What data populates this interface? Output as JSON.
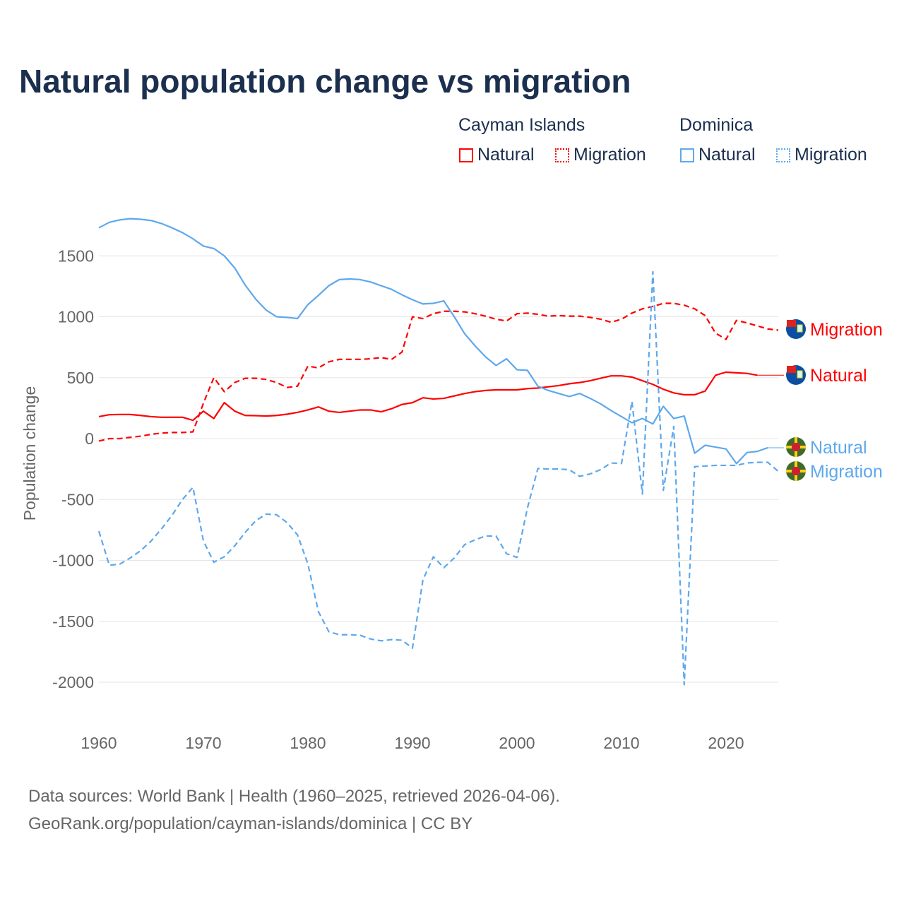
{
  "chart_data": {
    "type": "line",
    "title": "Natural population change vs migration",
    "ylabel": "Population change",
    "xlabel": "",
    "ylim": [
      -2250,
      1850
    ],
    "xlim": [
      1960,
      2025
    ],
    "yticks": [
      1500,
      1000,
      500,
      0,
      -500,
      -1000,
      -1500,
      -2000
    ],
    "ytick_labels": [
      "1500",
      "1000",
      "500",
      "0",
      "-500",
      "-1000",
      "-1500",
      "-2000"
    ],
    "xticks": [
      1960,
      1970,
      1980,
      1990,
      2000,
      2010,
      2020
    ],
    "xtick_labels": [
      "1960",
      "1970",
      "1980",
      "1990",
      "2000",
      "2010",
      "2020"
    ],
    "grid": true,
    "legend": {
      "placement": "top-right",
      "groups": [
        {
          "country": "Cayman Islands",
          "items": [
            "Natural",
            "Migration"
          ]
        },
        {
          "country": "Dominica",
          "items": [
            "Natural",
            "Migration"
          ]
        }
      ]
    },
    "series": [
      {
        "name": "Natural",
        "country": "Cayman Islands",
        "color": "#ff0000",
        "dash": false,
        "start_year": 1960,
        "values": [
          180,
          196,
          198,
          198,
          190,
          180,
          175,
          175,
          175,
          150,
          225,
          165,
          295,
          225,
          190,
          188,
          185,
          190,
          200,
          215,
          235,
          260,
          225,
          215,
          225,
          235,
          235,
          220,
          245,
          280,
          295,
          335,
          325,
          330,
          350,
          370,
          385,
          395,
          400,
          400,
          400,
          410,
          415,
          425,
          435,
          450,
          460,
          475,
          495,
          515,
          515,
          505,
          475,
          445,
          405,
          375,
          360,
          360,
          390,
          520,
          545,
          540,
          535,
          520
        ]
      },
      {
        "name": "Migration",
        "country": "Cayman Islands",
        "color": "#ff0000",
        "dash": true,
        "start_year": 1960,
        "values": [
          -20,
          0,
          0,
          10,
          20,
          35,
          45,
          50,
          50,
          55,
          290,
          500,
          385,
          460,
          495,
          495,
          485,
          460,
          420,
          430,
          595,
          580,
          630,
          650,
          650,
          650,
          655,
          665,
          650,
          710,
          1000,
          985,
          1025,
          1045,
          1045,
          1040,
          1025,
          1005,
          980,
          965,
          1025,
          1030,
          1020,
          1005,
          1010,
          1005,
          1005,
          995,
          980,
          955,
          980,
          1030,
          1065,
          1085,
          1110,
          1110,
          1095,
          1065,
          1010,
          865,
          815,
          970,
          950,
          925,
          900,
          890
        ]
      },
      {
        "name": "Natural",
        "country": "Dominica",
        "color": "#5ea8ec",
        "dash": false,
        "start_year": 1960,
        "values": [
          1730,
          1775,
          1795,
          1805,
          1800,
          1790,
          1765,
          1730,
          1690,
          1640,
          1580,
          1560,
          1500,
          1400,
          1260,
          1145,
          1055,
          1000,
          995,
          985,
          1100,
          1175,
          1255,
          1305,
          1310,
          1305,
          1285,
          1255,
          1225,
          1180,
          1140,
          1105,
          1110,
          1130,
          1000,
          860,
          760,
          670,
          600,
          655,
          565,
          560,
          430,
          395,
          370,
          345,
          370,
          330,
          285,
          230,
          180,
          130,
          165,
          120,
          265,
          165,
          185,
          -120,
          -55,
          -70,
          -85,
          -205,
          -115,
          -105,
          -75
        ]
      },
      {
        "name": "Migration",
        "country": "Dominica",
        "color": "#5ea8ec",
        "dash": true,
        "start_year": 1960,
        "values": [
          -760,
          -1040,
          -1030,
          -980,
          -920,
          -840,
          -740,
          -630,
          -500,
          -400,
          -840,
          -1015,
          -970,
          -880,
          -770,
          -675,
          -620,
          -625,
          -690,
          -790,
          -1030,
          -1420,
          -1585,
          -1610,
          -1610,
          -1615,
          -1645,
          -1660,
          -1650,
          -1655,
          -1720,
          -1160,
          -970,
          -1060,
          -980,
          -870,
          -830,
          -800,
          -800,
          -945,
          -975,
          -570,
          -245,
          -250,
          -250,
          -255,
          -310,
          -290,
          -255,
          -200,
          -205,
          305,
          -455,
          1370,
          -425,
          100,
          -2020,
          -230,
          -225,
          -220,
          -220,
          -220,
          -200,
          -195,
          -195,
          -270
        ]
      }
    ],
    "end_labels": [
      "Migration",
      "Natural",
      "Natural",
      "Migration"
    ]
  },
  "legend_labels": {
    "cayman": "Cayman Islands",
    "dominica": "Dominica",
    "natural": "Natural",
    "migration": "Migration"
  },
  "source": {
    "line1": "Data sources: World Bank | Health (1960–2025, retrieved 2026-04-06).",
    "line2": "GeoRank.org/population/cayman-islands/dominica | CC BY"
  }
}
